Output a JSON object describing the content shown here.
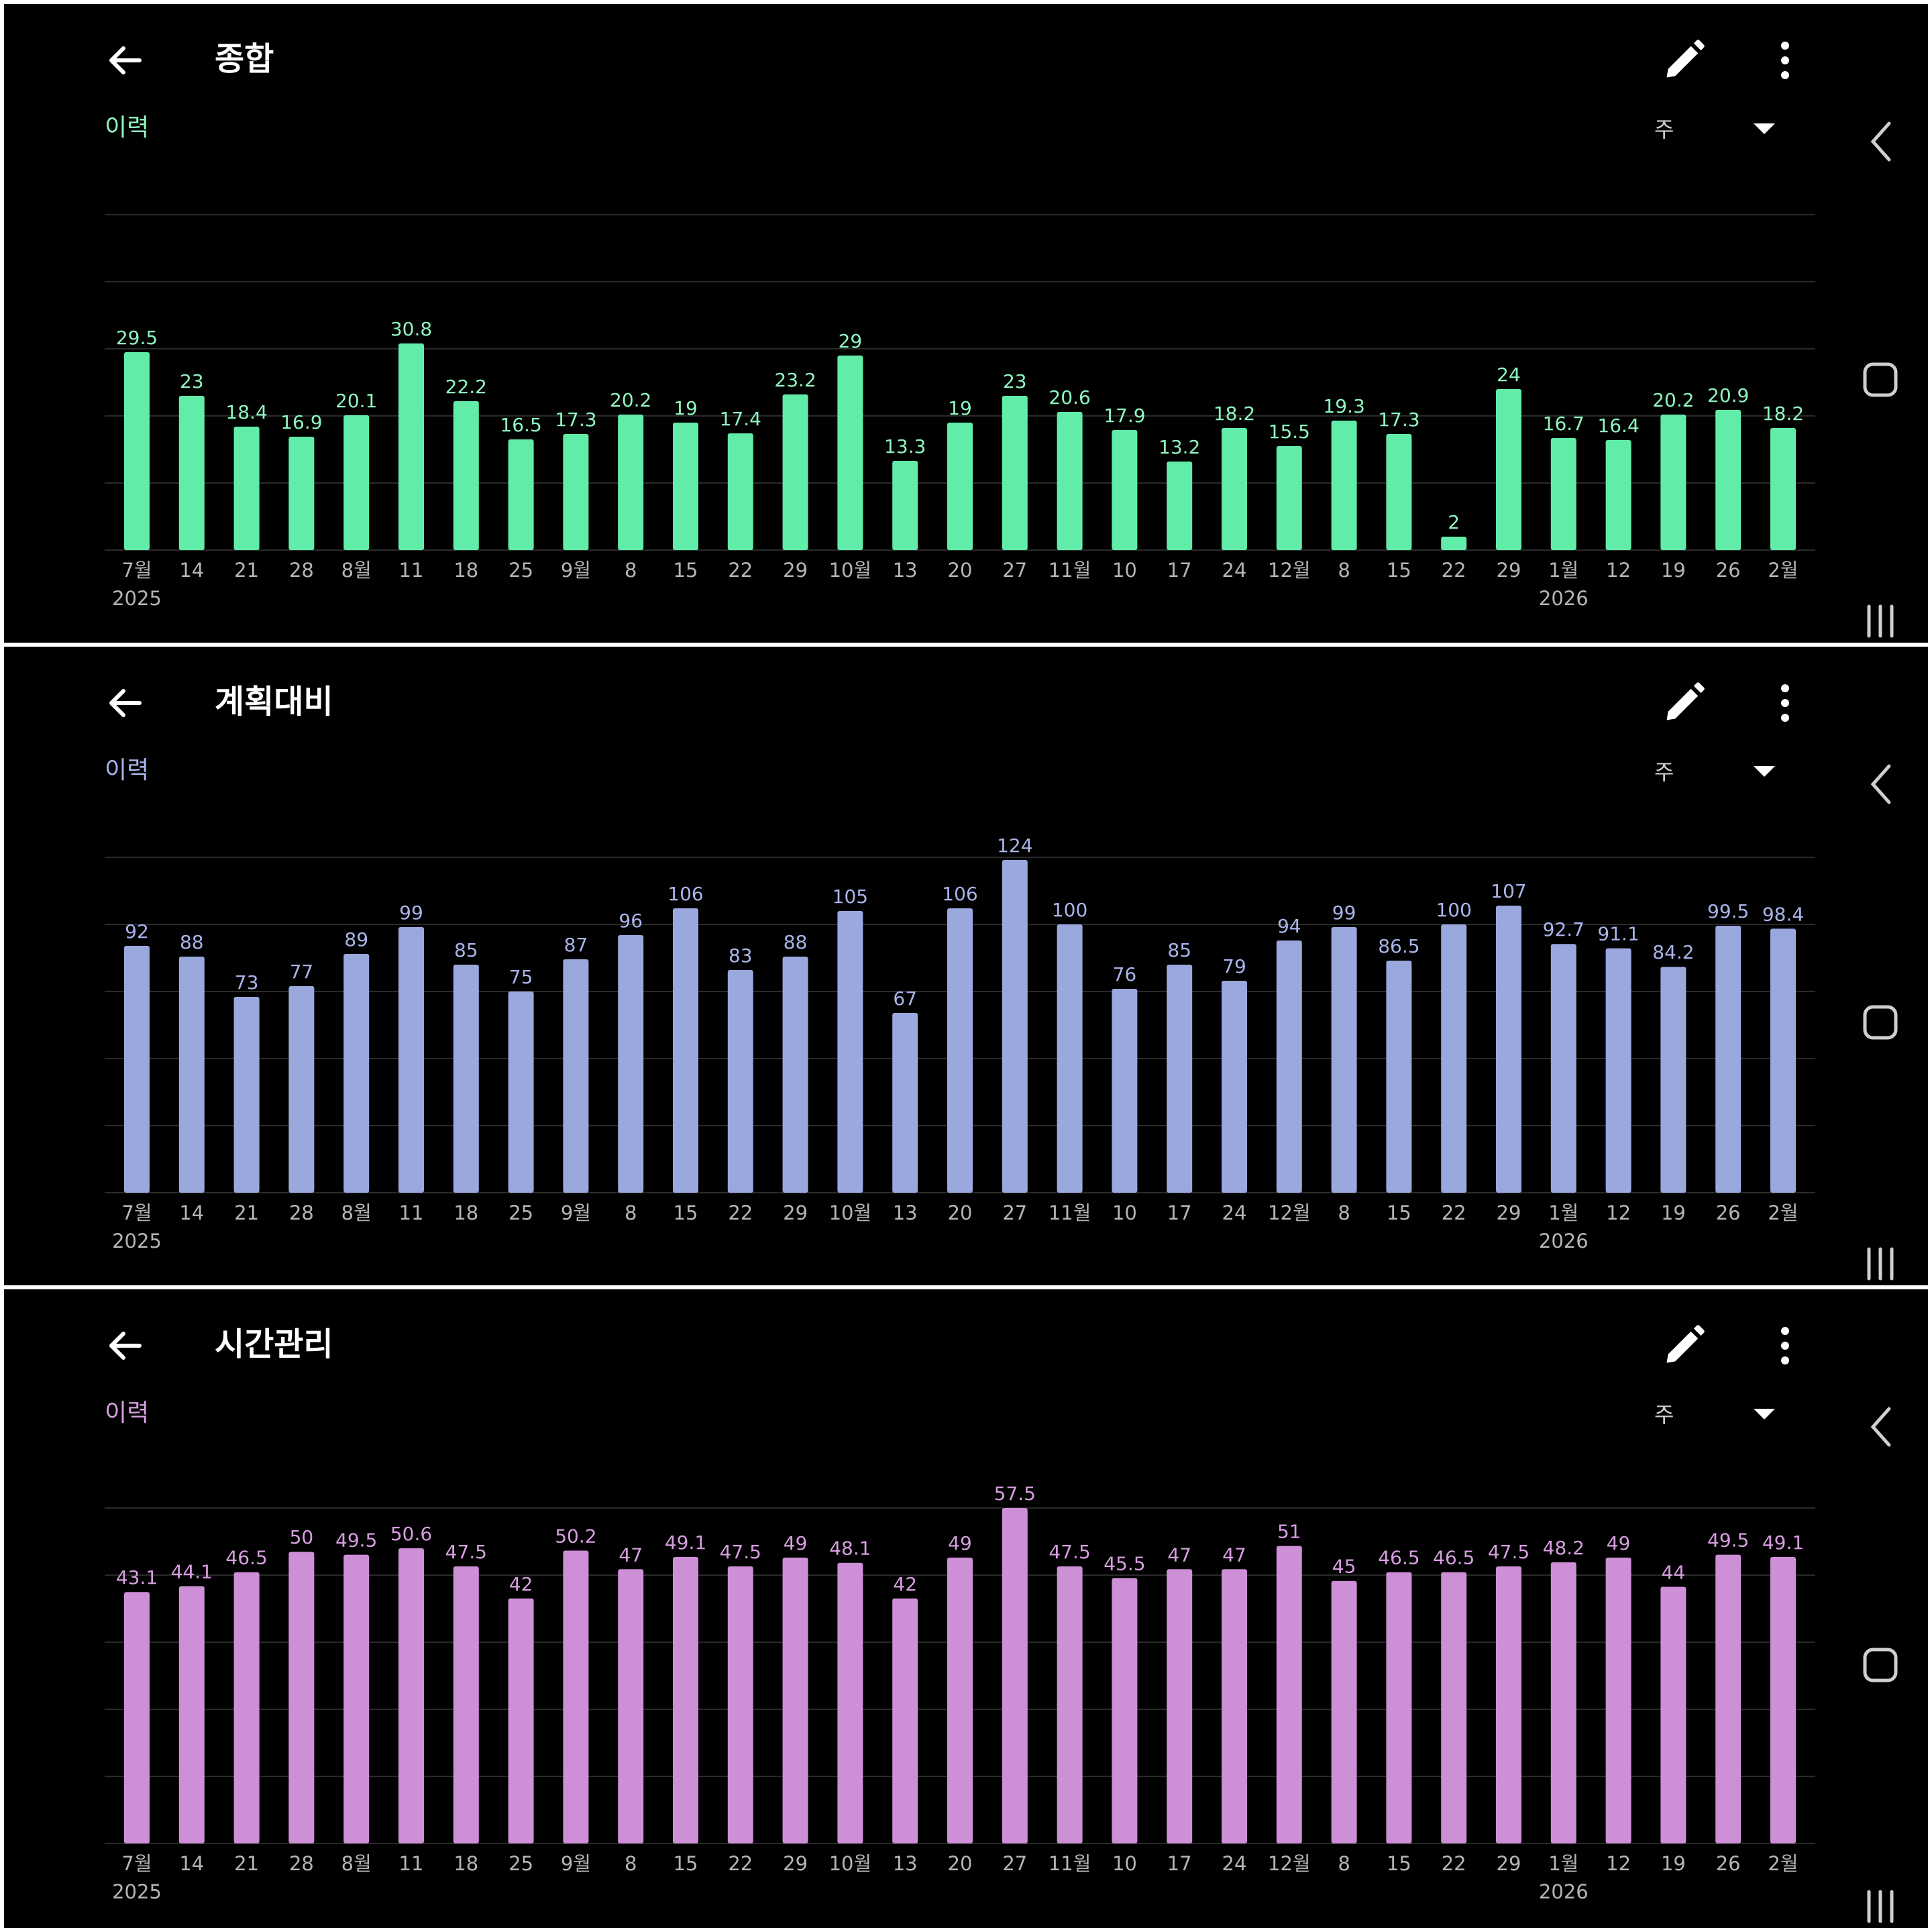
{
  "panels": [
    {
      "title": "종합",
      "history_label": "이력",
      "period": "주",
      "accent": "#62ecaa",
      "label_color": "#8ff5c0",
      "icons": [
        "back-arrow-icon",
        "pencil-icon",
        "more-vertical-icon",
        "dropdown-caret-icon"
      ],
      "chart_data": {
        "type": "bar",
        "categories": [
          "7월",
          "14",
          "21",
          "28",
          "8월",
          "11",
          "18",
          "25",
          "9월",
          "8",
          "15",
          "22",
          "29",
          "10월",
          "13",
          "20",
          "27",
          "11월",
          "10",
          "17",
          "24",
          "12월",
          "8",
          "15",
          "22",
          "29",
          "1월",
          "12",
          "19",
          "26",
          "2월"
        ],
        "year_labels": [
          {
            "index": 0,
            "text": "2025"
          },
          {
            "index": 26,
            "text": "2026"
          }
        ],
        "values": [
          29.5,
          23,
          18.4,
          16.9,
          20.1,
          30.8,
          22.2,
          16.5,
          17.3,
          20.2,
          19,
          17.4,
          23.2,
          29,
          13.3,
          19,
          23,
          20.6,
          17.9,
          13.2,
          18.2,
          15.5,
          19.3,
          17.3,
          2,
          24,
          16.7,
          16.4,
          20.2,
          20.9,
          18.2
        ],
        "ylim": [
          0,
          50
        ],
        "gridlines": 5
      }
    },
    {
      "title": "계획대비",
      "history_label": "이력",
      "period": "주",
      "accent": "#9aa8de",
      "label_color": "#a9b4ea",
      "icons": [
        "back-arrow-icon",
        "pencil-icon",
        "more-vertical-icon",
        "dropdown-caret-icon"
      ],
      "chart_data": {
        "type": "bar",
        "categories": [
          "7월",
          "14",
          "21",
          "28",
          "8월",
          "11",
          "18",
          "25",
          "9월",
          "8",
          "15",
          "22",
          "29",
          "10월",
          "13",
          "20",
          "27",
          "11월",
          "10",
          "17",
          "24",
          "12월",
          "8",
          "15",
          "22",
          "29",
          "1월",
          "12",
          "19",
          "26",
          "2월"
        ],
        "year_labels": [
          {
            "index": 0,
            "text": "2025"
          },
          {
            "index": 26,
            "text": "2026"
          }
        ],
        "values": [
          92,
          88,
          73,
          77,
          89,
          99,
          85,
          75,
          87,
          96,
          106,
          83,
          88,
          105,
          67,
          106,
          124,
          100,
          76,
          85,
          79,
          94,
          99,
          86.5,
          100,
          107,
          92.7,
          91.1,
          84.2,
          99.5,
          98.4
        ],
        "ylim": [
          0,
          125
        ],
        "gridlines": 5
      }
    },
    {
      "title": "시간관리",
      "history_label": "이력",
      "period": "주",
      "accent": "#cd8fd6",
      "label_color": "#d79ee0",
      "icons": [
        "back-arrow-icon",
        "pencil-icon",
        "more-vertical-icon",
        "dropdown-caret-icon"
      ],
      "chart_data": {
        "type": "bar",
        "categories": [
          "7월",
          "14",
          "21",
          "28",
          "8월",
          "11",
          "18",
          "25",
          "9월",
          "8",
          "15",
          "22",
          "29",
          "10월",
          "13",
          "20",
          "27",
          "11월",
          "10",
          "17",
          "24",
          "12월",
          "8",
          "15",
          "22",
          "29",
          "1월",
          "12",
          "19",
          "26",
          "2월"
        ],
        "year_labels": [
          {
            "index": 0,
            "text": "2025"
          },
          {
            "index": 26,
            "text": "2026"
          }
        ],
        "values": [
          43.1,
          44.1,
          46.5,
          50,
          49.5,
          50.6,
          47.5,
          42,
          50.2,
          47,
          49.1,
          47.5,
          49,
          48.1,
          42,
          49,
          57.5,
          47.5,
          45.5,
          47,
          47,
          51,
          45,
          46.5,
          46.5,
          47.5,
          48.2,
          49,
          44,
          49.5,
          49.1
        ],
        "ylim": [
          0,
          57.5
        ],
        "gridlines": 5
      }
    }
  ]
}
